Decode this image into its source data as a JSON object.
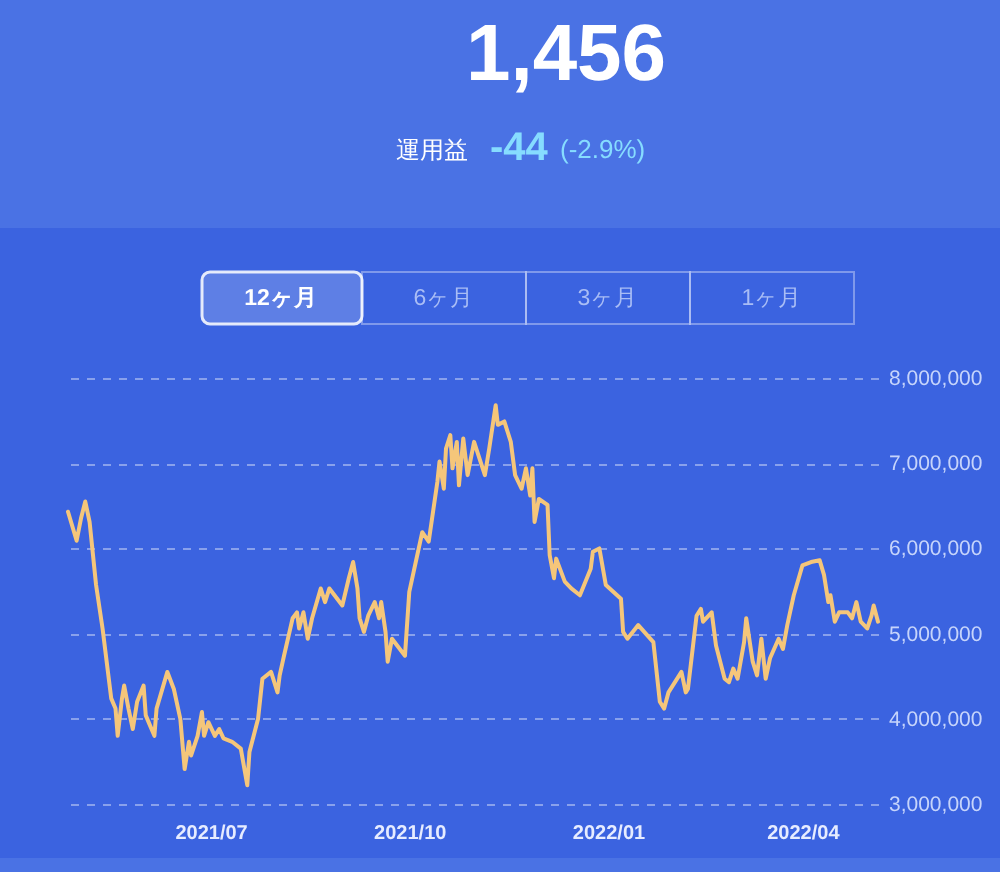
{
  "chart_data": {
    "type": "line",
    "title": "1,456",
    "subtitle": "運用益",
    "annotations": [
      "-44",
      "(-2.9%)",
      "12ヶ月",
      "6ヶ月",
      "3ヶ月",
      "1ヶ月"
    ],
    "x": [
      "2021-04-26",
      "2021-04-30",
      "2021-05-02",
      "2021-05-04",
      "2021-05-06",
      "2021-05-09",
      "2021-05-12",
      "2021-05-16",
      "2021-05-18",
      "2021-05-19",
      "2021-05-21",
      "2021-05-22",
      "2021-05-24",
      "2021-05-26",
      "2021-05-28",
      "2021-05-31",
      "2021-06-01",
      "2021-06-03",
      "2021-06-05",
      "2021-06-06",
      "2021-06-11",
      "2021-06-14",
      "2021-06-17",
      "2021-06-19",
      "2021-06-21",
      "2021-06-22",
      "2021-06-25",
      "2021-06-27",
      "2021-06-28",
      "2021-06-30",
      "2021-07-03",
      "2021-07-05",
      "2021-07-07",
      "2021-07-11",
      "2021-07-15",
      "2021-07-18",
      "2021-07-19",
      "2021-07-23",
      "2021-07-25",
      "2021-07-29",
      "2021-08-01",
      "2021-08-02",
      "2021-08-04",
      "2021-08-08",
      "2021-08-10",
      "2021-08-11",
      "2021-08-13",
      "2021-08-15",
      "2021-08-17",
      "2021-08-21",
      "2021-08-23",
      "2021-08-25",
      "2021-08-31",
      "2021-09-03",
      "2021-09-05",
      "2021-09-07",
      "2021-09-08",
      "2021-09-10",
      "2021-09-12",
      "2021-09-15",
      "2021-09-17",
      "2021-09-18",
      "2021-09-20",
      "2021-09-21",
      "2021-09-23",
      "2021-09-29",
      "2021-10-01",
      "2021-10-07",
      "2021-10-10",
      "2021-10-14",
      "2021-10-15",
      "2021-10-17",
      "2021-10-18",
      "2021-10-20",
      "2021-10-21",
      "2021-10-23",
      "2021-10-24",
      "2021-10-26",
      "2021-10-28",
      "2021-10-31",
      "2021-11-05",
      "2021-11-07",
      "2021-11-10",
      "2021-11-11",
      "2021-11-14",
      "2021-11-17",
      "2021-11-19",
      "2021-11-22",
      "2021-11-24",
      "2021-11-26",
      "2021-11-27",
      "2021-11-28",
      "2021-11-30",
      "2021-12-04",
      "2021-12-05",
      "2021-12-07",
      "2021-12-08",
      "2021-12-12",
      "2021-12-15",
      "2021-12-19",
      "2021-12-24",
      "2021-12-25",
      "2021-12-28",
      "2021-12-31",
      "2022-01-07",
      "2022-01-08",
      "2022-01-10",
      "2022-01-15",
      "2022-01-22",
      "2022-01-25",
      "2022-01-27",
      "2022-01-29",
      "2022-02-04",
      "2022-02-06",
      "2022-02-07",
      "2022-02-11",
      "2022-02-13",
      "2022-02-14",
      "2022-02-18",
      "2022-02-20",
      "2022-02-24",
      "2022-02-26",
      "2022-02-28",
      "2022-03-02",
      "2022-03-05",
      "2022-03-06",
      "2022-03-09",
      "2022-03-11",
      "2022-03-13",
      "2022-03-15",
      "2022-03-17",
      "2022-03-21",
      "2022-03-23",
      "2022-03-25",
      "2022-03-28",
      "2022-04-01",
      "2022-04-05",
      "2022-04-09",
      "2022-04-11",
      "2022-04-13",
      "2022-04-14",
      "2022-04-16",
      "2022-04-18",
      "2022-04-22",
      "2022-04-24",
      "2022-04-26",
      "2022-04-28",
      "2022-05-01",
      "2022-05-03",
      "2022-05-04",
      "2022-05-06"
    ],
    "series": [
      {
        "color": "#f5c67a",
        "values": [
          6430000,
          6090000,
          6350000,
          6550000,
          6310000,
          5570000,
          5060000,
          4240000,
          4120000,
          3800000,
          4240000,
          4390000,
          4120000,
          3880000,
          4200000,
          4390000,
          4040000,
          3920000,
          3800000,
          4120000,
          4550000,
          4350000,
          4000000,
          3410000,
          3730000,
          3570000,
          3800000,
          4080000,
          3800000,
          3960000,
          3800000,
          3880000,
          3770000,
          3730000,
          3650000,
          3220000,
          3610000,
          4000000,
          4470000,
          4550000,
          4310000,
          4510000,
          4740000,
          5180000,
          5250000,
          5060000,
          5250000,
          4940000,
          5180000,
          5530000,
          5370000,
          5530000,
          5330000,
          5650000,
          5840000,
          5530000,
          5180000,
          5020000,
          5210000,
          5370000,
          5180000,
          5370000,
          5020000,
          4670000,
          4940000,
          4740000,
          5490000,
          6190000,
          6080000,
          6780000,
          7020000,
          6700000,
          7170000,
          7330000,
          6940000,
          7250000,
          6740000,
          7290000,
          6860000,
          7250000,
          6860000,
          7170000,
          7680000,
          7450000,
          7490000,
          7250000,
          6860000,
          6700000,
          6940000,
          6620000,
          6940000,
          6310000,
          6580000,
          6510000,
          5920000,
          5650000,
          5880000,
          5610000,
          5530000,
          5450000,
          5760000,
          5960000,
          6000000,
          5570000,
          5410000,
          5020000,
          4940000,
          5100000,
          4900000,
          4200000,
          4120000,
          4310000,
          4550000,
          4310000,
          4350000,
          5210000,
          5290000,
          5140000,
          5250000,
          4860000,
          4470000,
          4430000,
          4590000,
          4470000,
          4900000,
          5180000,
          4670000,
          4510000,
          4940000,
          4470000,
          4710000,
          4940000,
          4820000,
          5100000,
          5450000,
          5800000,
          5840000,
          5860000,
          5690000,
          5370000,
          5450000,
          5140000,
          5250000,
          5250000,
          5180000,
          5370000,
          5140000,
          5060000,
          5210000,
          5330000,
          5140000
        ]
      }
    ],
    "xlim": [
      "2021-04-26",
      "2022-05-06"
    ],
    "xticks": [
      {
        "value": "2021-07-01",
        "label": "2021/07"
      },
      {
        "value": "2021-10-01",
        "label": "2021/10"
      },
      {
        "value": "2022-01-01",
        "label": "2022/01"
      },
      {
        "value": "2022-04-01",
        "label": "2022/04"
      }
    ],
    "ylim": [
      3000000,
      8000000
    ],
    "yticks": [
      {
        "value": 3000000,
        "label": "3,000,000"
      },
      {
        "value": 4000000,
        "label": "4,000,000"
      },
      {
        "value": 5000000,
        "label": "5,000,000"
      },
      {
        "value": 6000000,
        "label": "6,000,000"
      },
      {
        "value": 7000000,
        "label": "7,000,000"
      },
      {
        "value": 8000000,
        "label": "8,000,000"
      }
    ],
    "grid": "y",
    "line_style": "solid"
  }
}
